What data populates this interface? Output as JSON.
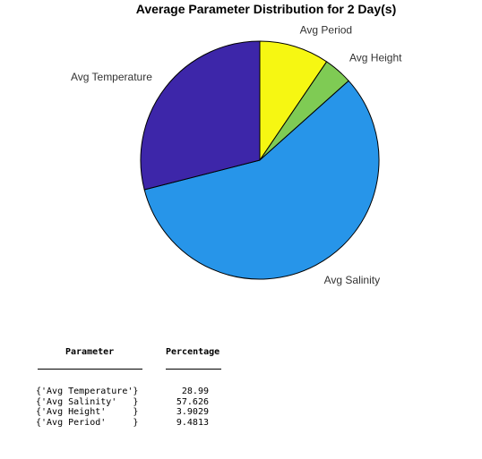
{
  "chart_data": {
    "type": "pie",
    "title": "Average Parameter Distribution for 2 Day(s)",
    "start_direction": "clockwise from top",
    "slices": [
      {
        "label": "Avg Period",
        "value": 9.4813,
        "color": "#f6f712"
      },
      {
        "label": "Avg Height",
        "value": 3.9029,
        "color": "#7fcb54"
      },
      {
        "label": "Avg Salinity",
        "value": 57.626,
        "color": "#2795e9"
      },
      {
        "label": "Avg Temperature",
        "value": 28.99,
        "color": "#3d26a9"
      }
    ],
    "edge_color": "#000000"
  },
  "table": {
    "header_param": "Parameter",
    "header_pct": "Percentage",
    "rows": [
      {
        "param": "{'Avg Temperature'}",
        "pct": "28.99"
      },
      {
        "param": "{'Avg Salinity'   }",
        "pct": "57.626"
      },
      {
        "param": "{'Avg Height'     }",
        "pct": "3.9029"
      },
      {
        "param": "{'Avg Period'     }",
        "pct": "9.4813"
      }
    ]
  }
}
